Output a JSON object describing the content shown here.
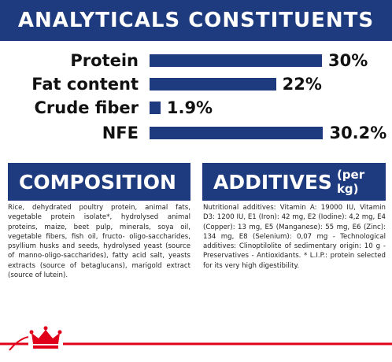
{
  "header": {
    "title": "ANALYTICALS CONSTITUENTS"
  },
  "analytics": {
    "items": [
      {
        "label": "Protein",
        "value": 30,
        "value_label": "30%"
      },
      {
        "label": "Fat content",
        "value": 22,
        "value_label": "22%"
      },
      {
        "label": "Crude fiber",
        "value": 1.9,
        "value_label": "1.9%"
      },
      {
        "label": "NFE",
        "value": 30.2,
        "value_label": "30.2%"
      }
    ]
  },
  "composition": {
    "title": "COMPOSITION",
    "text": "Rice, dehydrated poultry protein, animal fats, vegetable protein isolate*, hydrolysed animal proteins, maize, beet pulp, minerals, soya oil, vegetable fibers, fish oil, fructo- oligo-saccharides, psyllium husks and seeds, hydrolysed yeast (source of manno-oligo-saccharides), fatty acid salt, yeasts extracts (source of betaglucans), marigold extract (source of lutein)."
  },
  "additives": {
    "title": "ADDITIVES",
    "subtitle": "(per kg)",
    "text": "Nutritional additives: Vitamin A: 19000 IU, Vitamin D3: 1200 IU, E1 (Iron): 42 mg, E2 (Iodine): 4,2 mg, E4 (Copper): 13 mg, E5 (Manganese): 55 mg, E6 (Zinc): 134 mg, E8 (Selenium): 0,07 mg - Technological additives: Clinoptilolite of sedimentary origin: 10 g - Preservatives - Antioxidants. * L.I.P.: protein selected for its very high digestibility."
  }
}
